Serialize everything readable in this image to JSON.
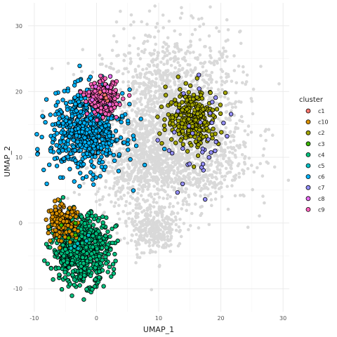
{
  "chart_data": {
    "type": "scatter",
    "xlabel": "UMAP_1",
    "ylabel": "UMAP_2",
    "xlim": [
      -11,
      31
    ],
    "ylim": [
      -13.5,
      33.5
    ],
    "x_ticks": [
      -10,
      0,
      10,
      20,
      30
    ],
    "y_ticks": [
      -10,
      0,
      10,
      20,
      30
    ],
    "grid": true,
    "legend": {
      "title": "cluster",
      "position": "right"
    },
    "background_cloud": {
      "color": "#d9d9d9",
      "description_points": [
        {
          "cx": 12,
          "cy": 16,
          "sx": 5.5,
          "sy": 6.5,
          "n": 1600
        },
        {
          "cx": 7,
          "cy": 9,
          "sx": 3.5,
          "sy": 3.5,
          "n": 500
        },
        {
          "cx": 16,
          "cy": 10,
          "sx": 4.5,
          "sy": 3.5,
          "n": 400
        },
        {
          "cx": 9,
          "cy": -1,
          "sx": 1.8,
          "sy": 1.8,
          "n": 280
        }
      ]
    },
    "series": [
      {
        "name": "c1",
        "color": "#f8766d",
        "center": [
          1,
          19
        ],
        "spread": [
          1.0,
          1.0
        ],
        "n": 5
      },
      {
        "name": "c10",
        "color": "#d89000",
        "center": [
          -5.5,
          0.2
        ],
        "spread": [
          1.2,
          1.2
        ],
        "n": 140
      },
      {
        "name": "c2",
        "color": "#a3a500",
        "center": [
          15.5,
          16
        ],
        "spread": [
          2.1,
          2.2
        ],
        "n": 280
      },
      {
        "name": "c3",
        "color": "#39b600",
        "center": [
          -3.5,
          -2
        ],
        "spread": [
          1.0,
          1.0
        ],
        "n": 4
      },
      {
        "name": "c4",
        "color": "#00bf7d",
        "center": [
          -2.5,
          -4
        ],
        "spread": [
          2.3,
          2.6
        ],
        "n": 700
      },
      {
        "name": "c5",
        "color": "#00bfc4",
        "center": [
          -2.5,
          -3.5
        ],
        "spread": [
          1.2,
          1.2
        ],
        "n": 6
      },
      {
        "name": "c6",
        "color": "#00b0f6",
        "center": [
          -1.5,
          14
        ],
        "spread": [
          2.9,
          3.0
        ],
        "n": 650
      },
      {
        "name": "c7",
        "color": "#9590ff",
        "center": [
          17,
          12
        ],
        "spread": [
          3.0,
          4.0
        ],
        "n": 35
      },
      {
        "name": "c8",
        "color": "#e76bf3",
        "center": [
          1,
          19
        ],
        "spread": [
          1.0,
          1.0
        ],
        "n": 5
      },
      {
        "name": "c9",
        "color": "#ff62bc",
        "center": [
          1,
          19
        ],
        "spread": [
          1.2,
          1.2
        ],
        "n": 220
      }
    ]
  }
}
